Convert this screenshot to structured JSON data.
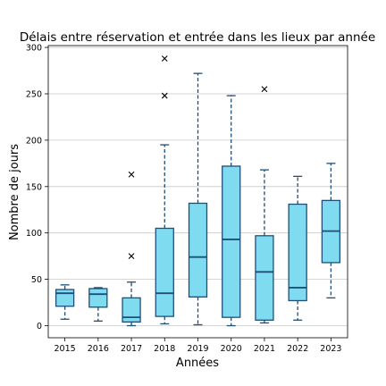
{
  "chart_data": {
    "type": "box",
    "title": "Délais entre réservation et entrée dans les lieux par année",
    "xlabel": "Années",
    "ylabel": "Nombre de jours",
    "ylim": [
      -13,
      302
    ],
    "yticks": [
      0,
      50,
      100,
      150,
      200,
      250,
      300
    ],
    "grid": "horizontal",
    "colors": {
      "box_fill": "#7fdbf0",
      "box_edge": "#1f4e79",
      "outlier": "#000000",
      "grid": "#c8c8c8"
    },
    "categories": [
      "2015",
      "2016",
      "2017",
      "2018",
      "2019",
      "2020",
      "2021",
      "2022",
      "2023"
    ],
    "boxes": [
      {
        "year": "2015",
        "whislo": 7,
        "q1": 21,
        "med": 35,
        "q3": 39,
        "whishi": 44,
        "outliers": []
      },
      {
        "year": "2016",
        "whislo": 5,
        "q1": 20,
        "med": 34,
        "q3": 40,
        "whishi": 41,
        "outliers": []
      },
      {
        "year": "2017",
        "whislo": 0,
        "q1": 4,
        "med": 9,
        "q3": 30,
        "whishi": 47,
        "outliers": [
          75,
          163
        ]
      },
      {
        "year": "2018",
        "whislo": 2,
        "q1": 10,
        "med": 35,
        "q3": 105,
        "whishi": 195,
        "outliers": [
          248,
          288
        ]
      },
      {
        "year": "2019",
        "whislo": 1,
        "q1": 31,
        "med": 74,
        "q3": 132,
        "whishi": 272,
        "outliers": []
      },
      {
        "year": "2020",
        "whislo": 0,
        "q1": 9,
        "med": 93,
        "q3": 172,
        "whishi": 248,
        "outliers": []
      },
      {
        "year": "2021",
        "whislo": 3,
        "q1": 6,
        "med": 58,
        "q3": 97,
        "whishi": 168,
        "outliers": [
          255
        ]
      },
      {
        "year": "2022",
        "whislo": 6,
        "q1": 27,
        "med": 41,
        "q3": 131,
        "whishi": 161,
        "outliers": []
      },
      {
        "year": "2023",
        "whislo": 30,
        "q1": 68,
        "med": 102,
        "q3": 135,
        "whishi": 175,
        "outliers": []
      }
    ]
  }
}
